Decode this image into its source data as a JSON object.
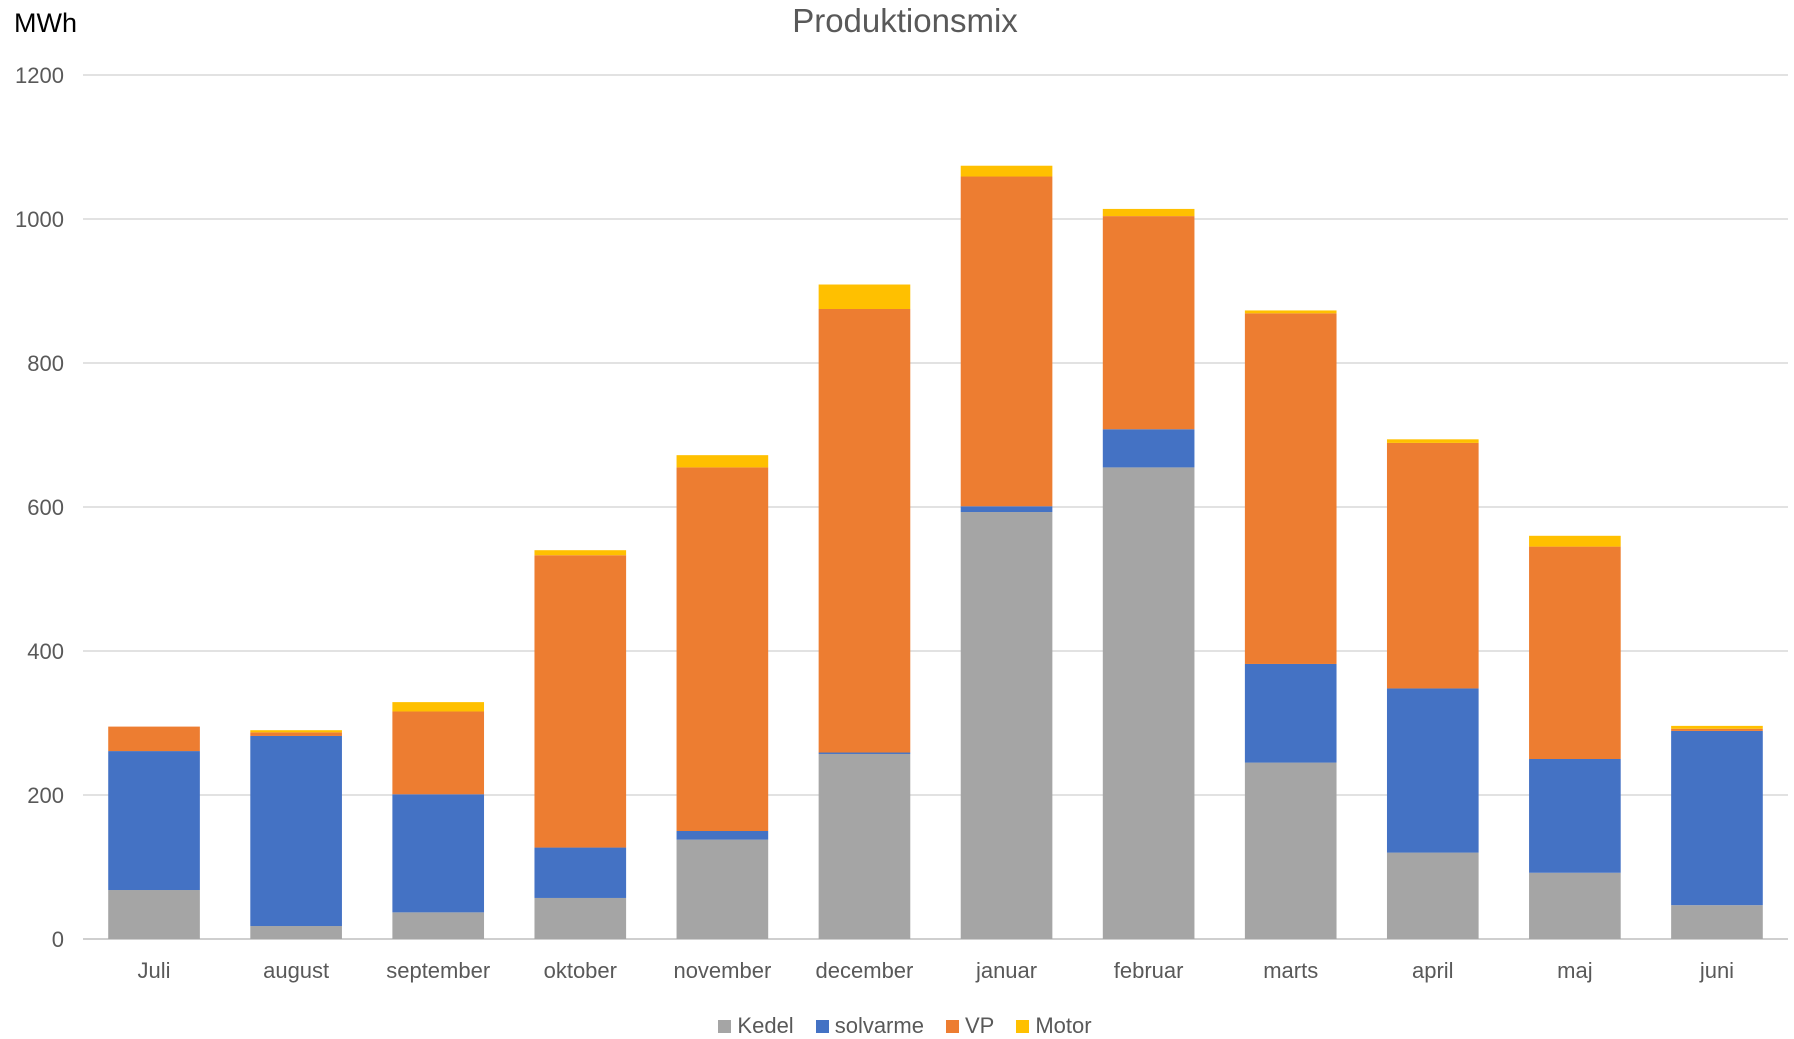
{
  "chart_data": {
    "type": "bar",
    "stacked": true,
    "title": "Produktionsmix",
    "ylabel": "MWh",
    "xlabel": "",
    "ylim": [
      0,
      1200
    ],
    "yticks": [
      0,
      200,
      400,
      600,
      800,
      1000,
      1200
    ],
    "grid": true,
    "legend_position": "bottom",
    "categories": [
      "Juli",
      "august",
      "september",
      "oktober",
      "november",
      "december",
      "januar",
      "februar",
      "marts",
      "april",
      "maj",
      "juni"
    ],
    "series": [
      {
        "name": "Kedel",
        "color": "#a5a5a5",
        "values": [
          68,
          18,
          37,
          57,
          138,
          257,
          593,
          655,
          245,
          120,
          92,
          47
        ]
      },
      {
        "name": "solvarme",
        "color": "#4472c4",
        "values": [
          193,
          264,
          164,
          70,
          12,
          2,
          8,
          53,
          137,
          228,
          158,
          242
        ]
      },
      {
        "name": "VP",
        "color": "#ed7d31",
        "values": [
          34,
          5,
          115,
          406,
          505,
          616,
          458,
          296,
          487,
          341,
          295,
          3
        ]
      },
      {
        "name": "Motor",
        "color": "#ffc000",
        "values": [
          0,
          3,
          13,
          7,
          17,
          34,
          15,
          10,
          4,
          5,
          15,
          4
        ]
      }
    ]
  }
}
